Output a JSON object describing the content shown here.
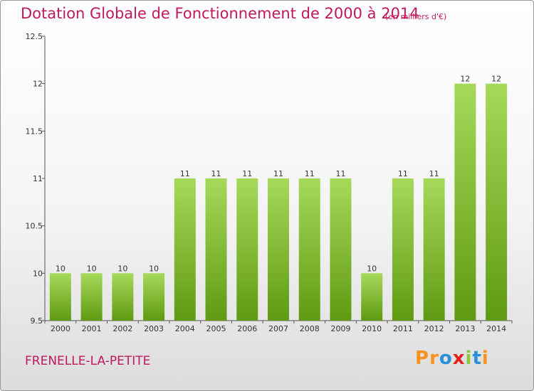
{
  "header": {
    "title": "Dotation Globale de Fonctionnement de 2000 à 2014",
    "unit": "(en milliers d'€)"
  },
  "footer": {
    "commune": "FRENELLE-LA-PETITE",
    "logo": "Proxiti"
  },
  "colors": {
    "title": "#c0185e",
    "bar_light": "#a6d95a",
    "bar_dark": "#5f9a12",
    "logo_letters": [
      "#f7931e",
      "#f7931e",
      "#2a8fd6",
      "#e0231c",
      "#8cc63f",
      "#2a8fd6",
      "#f7931e"
    ]
  },
  "chart_data": {
    "type": "bar",
    "categories": [
      "2000",
      "2001",
      "2002",
      "2003",
      "2004",
      "2005",
      "2006",
      "2007",
      "2008",
      "2009",
      "2010",
      "2011",
      "2012",
      "2013",
      "2014"
    ],
    "values": [
      10,
      10,
      10,
      10,
      11,
      11,
      11,
      11,
      11,
      11,
      10,
      11,
      11,
      12,
      12
    ],
    "data_labels": [
      "10",
      "10",
      "10",
      "10",
      "11",
      "11",
      "11",
      "11",
      "11",
      "11",
      "10",
      "11",
      "11",
      "12",
      "12"
    ],
    "ylim": [
      9.5,
      12.5
    ],
    "yticks": [
      9.5,
      10,
      10.5,
      11,
      11.5,
      12,
      12.5
    ],
    "ytick_labels": [
      "9.5",
      "10",
      "10.5",
      "11",
      "11.5",
      "12",
      "12.5"
    ],
    "grid": false,
    "legend": "none"
  }
}
